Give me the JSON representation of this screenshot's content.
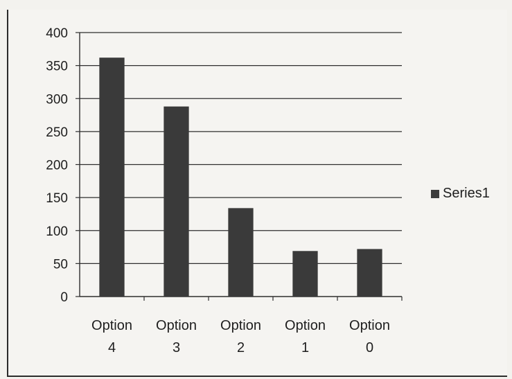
{
  "chart_data": {
    "type": "bar",
    "categories": [
      [
        "Option",
        "4"
      ],
      [
        "Option",
        "3"
      ],
      [
        "Option",
        "2"
      ],
      [
        "Option",
        "1"
      ],
      [
        "Option",
        "0"
      ]
    ],
    "series": [
      {
        "name": "Series1",
        "values": [
          362,
          288,
          134,
          69,
          72
        ]
      }
    ],
    "ylim": [
      0,
      400
    ],
    "yticks": [
      0,
      50,
      100,
      150,
      200,
      250,
      300,
      350,
      400
    ],
    "grid": true,
    "legend_position": "right",
    "bar_color": "#3a3a3a"
  },
  "legend": {
    "label": "Series1"
  }
}
